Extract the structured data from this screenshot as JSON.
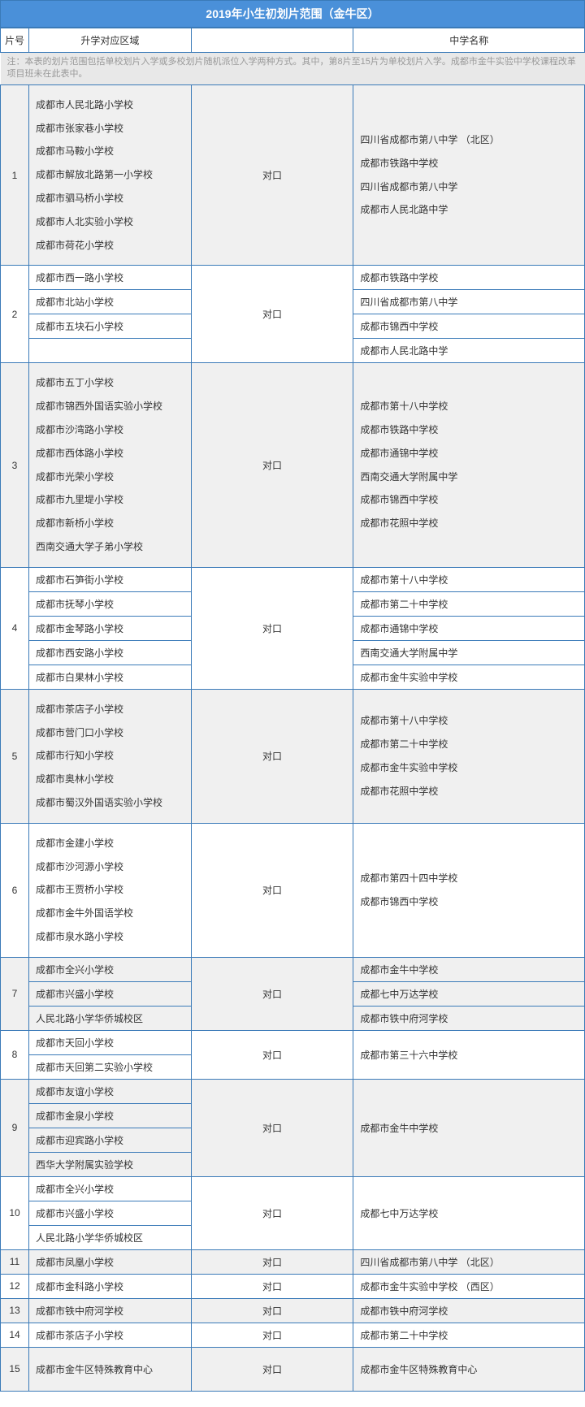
{
  "title": "2019年小生初划片范围（金牛区）",
  "headers": {
    "num": "片号",
    "area": "升学对应区域",
    "mid": "",
    "ms": "中学名称"
  },
  "note": "注：本表的划片范围包括单校划片入学或多校划片随机派位入学两种方式。其中，第8片至15片为单校划片入学。成都市金牛实验中学校课程改革项目班未在此表中。",
  "mid_label": "对口",
  "groups": [
    {
      "num": "1",
      "alt": true,
      "schools": [
        "成都市人民北路小学校",
        "成都市张家巷小学校",
        "成都市马鞍小学校",
        "成都市解放北路第一小学校",
        "成都市驷马桥小学校",
        "成都市人北实验小学校",
        "成都市荷花小学校"
      ],
      "ms": [
        "四川省成都市第八中学 （北区）",
        "成都市铁路中学校",
        "四川省成都市第八中学",
        "成都市人民北路中学"
      ]
    },
    {
      "num": "2",
      "alt": false,
      "schools": [
        "成都市西一路小学校",
        "成都市北站小学校",
        "成都市五块石小学校",
        ""
      ],
      "ms": [
        "成都市铁路中学校",
        "四川省成都市第八中学",
        "成都市锦西中学校",
        "成都市人民北路中学"
      ],
      "split": true
    },
    {
      "num": "3",
      "alt": true,
      "schools": [
        "成都市五丁小学校",
        "成都市锦西外国语实验小学校",
        "成都市沙湾路小学校",
        "成都市西体路小学校",
        "成都市光荣小学校",
        "成都市九里堤小学校",
        "成都市新桥小学校",
        "西南交通大学子弟小学校"
      ],
      "ms": [
        "成都市第十八中学校",
        "成都市铁路中学校",
        "成都市通锦中学校",
        "西南交通大学附属中学",
        "成都市锦西中学校",
        "成都市花照中学校"
      ]
    },
    {
      "num": "4",
      "alt": false,
      "schools": [
        "成都市石笋街小学校",
        "成都市抚琴小学校",
        "成都市金琴路小学校",
        "成都市西安路小学校",
        "成都市白果林小学校"
      ],
      "ms": [
        "成都市第十八中学校",
        "成都市第二十中学校",
        "成都市通锦中学校",
        "西南交通大学附属中学",
        "成都市金牛实验中学校"
      ],
      "split": true
    },
    {
      "num": "5",
      "alt": true,
      "schools": [
        "成都市茶店子小学校",
        "成都市营门口小学校",
        "成都市行知小学校",
        "成都市奥林小学校",
        "成都市蜀汉外国语实验小学校"
      ],
      "ms": [
        "成都市第十八中学校",
        "成都市第二十中学校",
        "成都市金牛实验中学校",
        "成都市花照中学校"
      ]
    },
    {
      "num": "6",
      "alt": false,
      "schools": [
        "成都市金建小学校",
        "成都市沙河源小学校",
        "成都市王贾桥小学校",
        "成都市金牛外国语学校",
        "成都市泉水路小学校"
      ],
      "ms": [
        "成都市第四十四中学校",
        "成都市锦西中学校"
      ]
    },
    {
      "num": "7",
      "alt": true,
      "schools": [
        "成都市全兴小学校",
        "成都市兴盛小学校",
        "人民北路小学华侨城校区"
      ],
      "ms": [
        "成都市金牛中学校",
        "成都七中万达学校",
        "成都市铁中府河学校"
      ],
      "split": true
    },
    {
      "num": "8",
      "alt": false,
      "schools": [
        "成都市天回小学校",
        "成都市天回第二实验小学校"
      ],
      "ms": [
        "成都市第三十六中学校"
      ],
      "split": true,
      "msRowspan": 2
    },
    {
      "num": "9",
      "alt": true,
      "schools": [
        "成都市友谊小学校",
        "成都市金泉小学校",
        "成都市迎宾路小学校",
        "西华大学附属实验学校"
      ],
      "ms": [
        "成都市金牛中学校"
      ],
      "split": true,
      "msRowspan": 4
    },
    {
      "num": "10",
      "alt": false,
      "schools": [
        "成都市全兴小学校",
        "成都市兴盛小学校",
        "人民北路小学华侨城校区"
      ],
      "ms": [
        "成都七中万达学校"
      ],
      "split": true,
      "msRowspan": 3
    },
    {
      "num": "11",
      "alt": true,
      "schools": [
        "成都市凤凰小学校"
      ],
      "ms": [
        "四川省成都市第八中学 （北区）"
      ],
      "single": true
    },
    {
      "num": "12",
      "alt": false,
      "schools": [
        "成都市金科路小学校"
      ],
      "ms": [
        "成都市金牛实验中学校 （西区）"
      ],
      "single": true
    },
    {
      "num": "13",
      "alt": true,
      "schools": [
        "成都市铁中府河学校"
      ],
      "ms": [
        "成都市铁中府河学校"
      ],
      "single": true
    },
    {
      "num": "14",
      "alt": false,
      "schools": [
        "成都市茶店子小学校"
      ],
      "ms": [
        "成都市第二十中学校"
      ],
      "single": true
    },
    {
      "num": "15",
      "alt": true,
      "schools": [
        "成都市金牛区特殊教育中心"
      ],
      "ms": [
        "成都市金牛区特殊教育中心"
      ],
      "single": true,
      "tall": true
    }
  ]
}
